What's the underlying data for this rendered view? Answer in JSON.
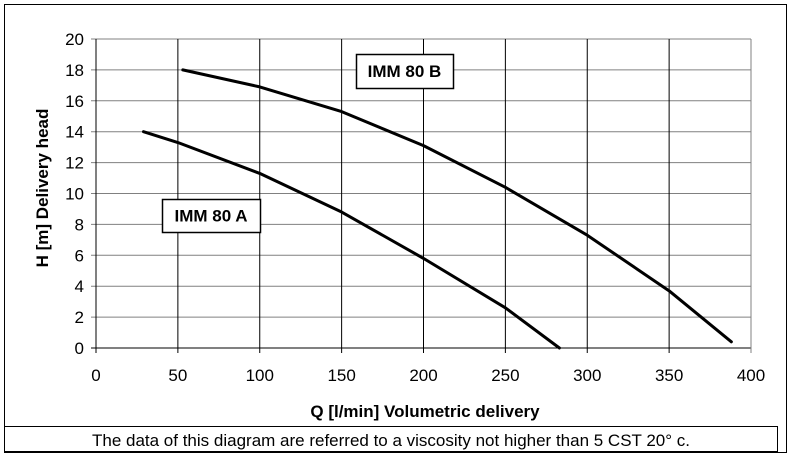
{
  "chart_data": {
    "type": "line",
    "xlabel": "Q [l/min] Volumetric delivery",
    "ylabel": "H [m] Delivery head",
    "xlim": [
      0,
      400
    ],
    "ylim": [
      0,
      20
    ],
    "xticks": [
      0,
      50,
      100,
      150,
      200,
      250,
      300,
      350,
      400
    ],
    "yticks": [
      0,
      2,
      4,
      6,
      8,
      10,
      12,
      14,
      16,
      18,
      20
    ],
    "grid": true,
    "series": [
      {
        "name": "IMM 80 A",
        "x": [
          29,
          50,
          100,
          150,
          200,
          250,
          283
        ],
        "y": [
          14.0,
          13.3,
          11.3,
          8.8,
          5.8,
          2.6,
          0.0
        ]
      },
      {
        "name": "IMM 80 B",
        "x": [
          53,
          100,
          150,
          200,
          250,
          300,
          350,
          388
        ],
        "y": [
          18.0,
          16.9,
          15.3,
          13.1,
          10.4,
          7.3,
          3.7,
          0.4
        ]
      }
    ],
    "line_color": "#000000",
    "grid_color": "#808080"
  },
  "footnote": "The data of this diagram are referred to a viscosity not higher than 5 CST 20° c."
}
